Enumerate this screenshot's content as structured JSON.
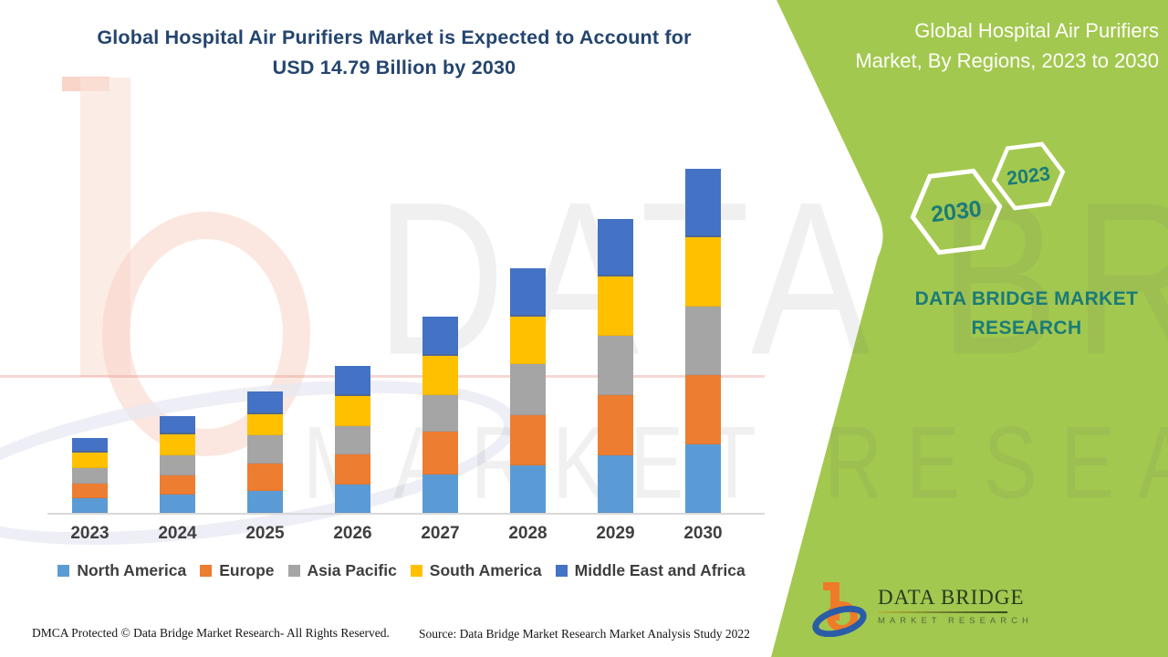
{
  "header": {
    "title_line1": "Global Hospital Air Purifiers Market is Expected to Account for",
    "title_line2": "USD 14.79 Billion by 2030",
    "side_title_line1": "Global Hospital Air Purifiers",
    "side_title_line2": "Market, By Regions, 2023 to 2030"
  },
  "badges": {
    "hex_back": "2030",
    "hex_front": "2023"
  },
  "brand": {
    "caps_line1": "DATA BRIDGE MARKET",
    "caps_line2": "RESEARCH",
    "logo_title": "DATA BRIDGE",
    "logo_subtitle": "MARKET RESEARCH"
  },
  "watermarks": {
    "big_text_top": "DATA BRIDGE",
    "big_text_bottom": "MARKET RESEARCH"
  },
  "footer": {
    "dmca": "DMCA Protected © Data Bridge Market Research- All Rights Reserved.",
    "source": "Source: Data Bridge Market Research Market Analysis Study 2022"
  },
  "colors": {
    "green_panel": "#a3c84f",
    "navy_title": "#24456e",
    "teal_text": "#1a7b78",
    "axis_gray": "#d8d8d8",
    "label_gray": "#3f3f3f",
    "north_america": "#5b9bd5",
    "europe": "#ed7d31",
    "asia_pacific": "#a5a5a5",
    "south_america": "#ffc000",
    "middle_east_africa": "#4472c4"
  },
  "chart_data": {
    "type": "bar",
    "stacked": true,
    "unit": "USD Billion",
    "title": "Global Hospital Air Purifiers Market is Expected to Account for USD 14.79 Billion by 2030",
    "total_2030": 14.79,
    "y_axis_visible": false,
    "grid": false,
    "legend_position": "bottom",
    "categories": [
      "2023",
      "2024",
      "2025",
      "2026",
      "2027",
      "2028",
      "2029",
      "2030"
    ],
    "series": [
      {
        "name": "North America",
        "color": "#5b9bd5",
        "values": [
          0.63,
          0.79,
          0.95,
          1.23,
          1.63,
          2.06,
          2.46,
          2.93
        ]
      },
      {
        "name": "Europe",
        "color": "#ed7d31",
        "values": [
          0.63,
          0.83,
          1.19,
          1.27,
          1.86,
          2.14,
          2.62,
          3.01
        ]
      },
      {
        "name": "Asia Pacific",
        "color": "#a5a5a5",
        "values": [
          0.67,
          0.87,
          1.19,
          1.23,
          1.59,
          2.18,
          2.54,
          2.93
        ]
      },
      {
        "name": "South America",
        "color": "#ffc000",
        "values": [
          0.67,
          0.87,
          0.91,
          1.27,
          1.67,
          2.06,
          2.54,
          2.97
        ]
      },
      {
        "name": "Middle East and Africa",
        "color": "#4472c4",
        "values": [
          0.6,
          0.79,
          0.99,
          1.31,
          1.7,
          2.06,
          2.46,
          2.95
        ]
      }
    ]
  }
}
